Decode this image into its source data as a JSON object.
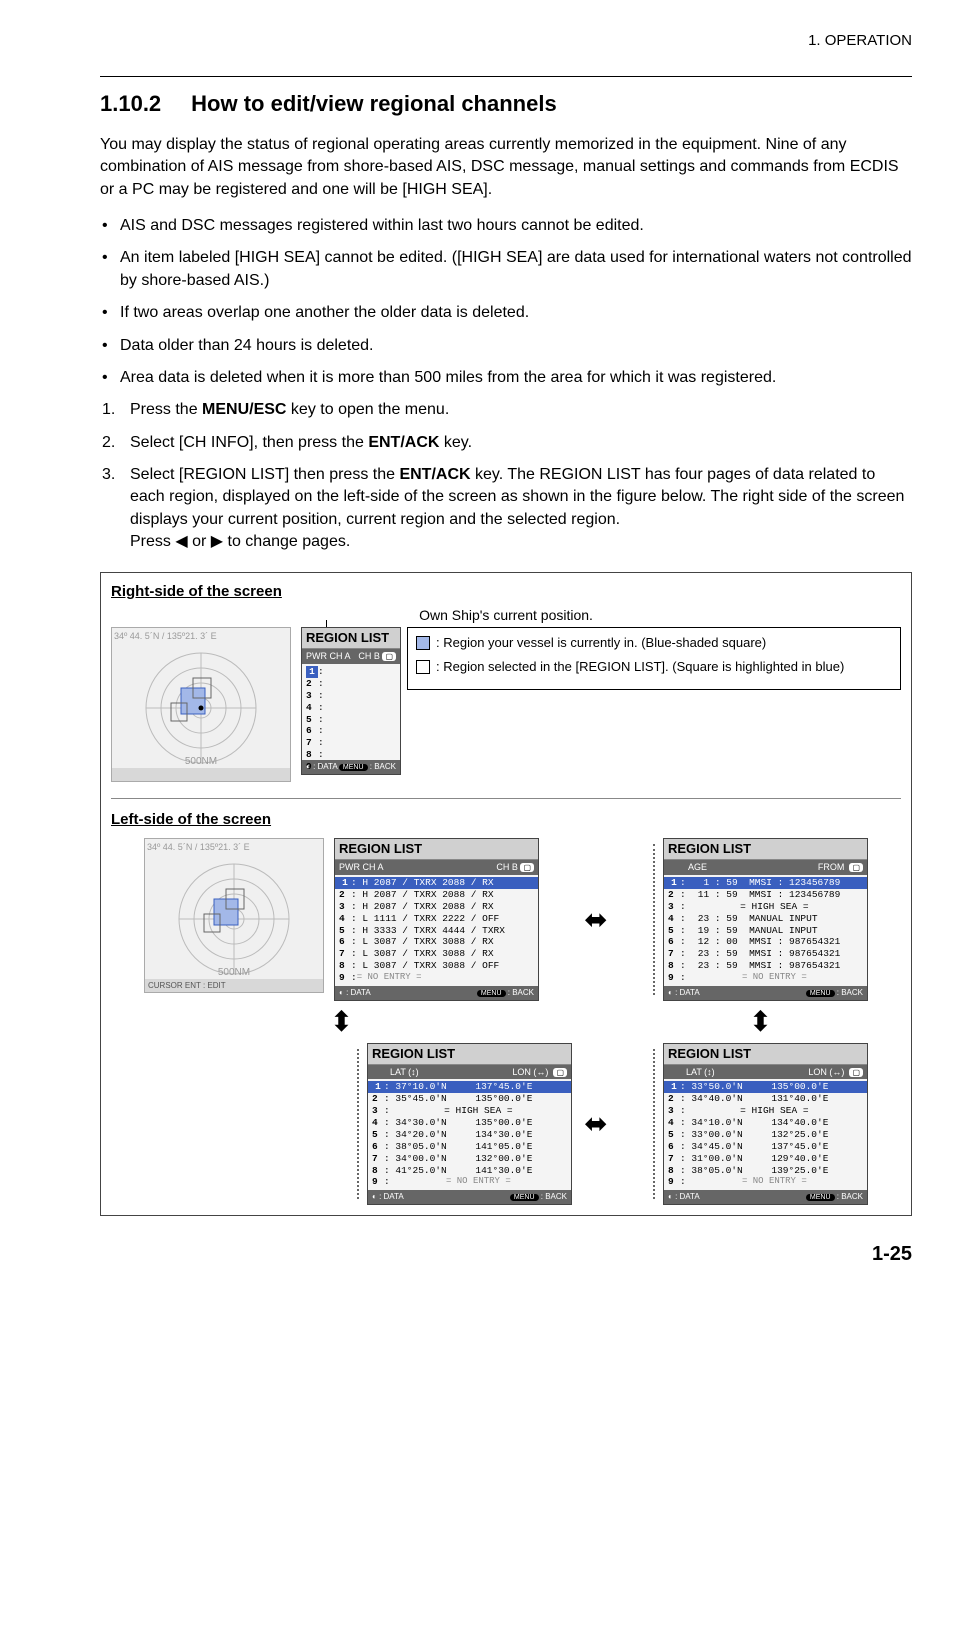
{
  "chapter_ref": "1.  OPERATION",
  "section": {
    "num": "1.10.2",
    "title": "How to edit/view regional channels"
  },
  "intro": "You may display the status of regional operating areas currently memorized in the equipment. Nine of any combination of AIS message from shore-based AIS, DSC message, manual settings and commands from ECDIS or a PC may be registered and one will be [HIGH SEA].",
  "bullets": [
    "AIS and DSC messages registered within last two hours cannot be edited.",
    "An item labeled [HIGH SEA] cannot be edited. ([HIGH SEA] are data used for international waters not controlled by shore-based AIS.)",
    "If two areas overlap one another the older data is deleted.",
    "Data older than 24 hours is deleted.",
    "Area data is deleted when it is more than 500 miles from the area for which it was registered."
  ],
  "steps": [
    {
      "pre": "Press the ",
      "bold": "MENU/ESC",
      "post": " key to open the menu."
    },
    {
      "pre": "Select [CH INFO], then press the ",
      "bold": "ENT/ACK",
      "post": " key."
    },
    {
      "pre": "Select [REGION LIST] then press the ",
      "bold": "ENT/ACK",
      "post": " key. The REGION LIST has four pages of data related to each region, displayed on the left-side of the screen as shown in the figure below. The right side of the screen displays your current position, current region and the selected region.",
      "tail_img": true
    }
  ],
  "step3_extra": "Press ◀ or ▶ to change pages.",
  "figure": {
    "right_label": "Right-side of the screen",
    "left_label": "Left-side of the screen",
    "own_ship": "Own Ship's current position.",
    "radar_coord": "34º 44. 5´N / 135º21. 3´ E",
    "radar_nm": "500NM",
    "radar_footer_left": "CURSOR       ENT : EDIT",
    "lcd_title": "REGION LIST",
    "lcd_sub_left": "PWR   CH A",
    "lcd_sub_right": "CH B",
    "footer_data": ": DATA",
    "footer_back": ": BACK",
    "footer_menu": "MENU",
    "legend": {
      "a": ": Region your vessel is currently in. (Blue-shaded square)",
      "b": ": Region selected in the [REGION LIST]. (Square is highlighted in blue)"
    },
    "no_entry": "= NO ENTRY =",
    "high_sea": "=  HIGH SEA  =",
    "panel_ch": {
      "rows": [
        {
          "n": "1",
          "txt": "H  2087 / TXRX   2088 / RX",
          "hl": true
        },
        {
          "n": "2",
          "txt": "H  2087 / TXRX   2088 / RX"
        },
        {
          "n": "3",
          "txt": "H  2087 / TXRX   2088 / RX"
        },
        {
          "n": "4",
          "txt": "L  1111 / TXRX   2222 / OFF"
        },
        {
          "n": "5",
          "txt": "H  3333 / TXRX   4444 / TXRX"
        },
        {
          "n": "6",
          "txt": "L  3087 / TXRX   3088 / RX"
        },
        {
          "n": "7",
          "txt": "L  3087 / TXRX   3088 / RX"
        },
        {
          "n": "8",
          "txt": "L  3087 / TXRX   3088 / OFF"
        }
      ]
    },
    "panel_age": {
      "header_l": "AGE",
      "header_r": "FROM",
      "rows": [
        {
          "n": "1",
          "age": "  1 : 59",
          "from": "MMSI : 123456789",
          "hl": true
        },
        {
          "n": "2",
          "age": "11 : 59",
          "from": "MMSI : 123456789"
        },
        {
          "n": "3",
          "age": "",
          "from": "",
          "highsea": true
        },
        {
          "n": "4",
          "age": "23 : 59",
          "from": "MANUAL INPUT"
        },
        {
          "n": "5",
          "age": "19 : 59",
          "from": "MANUAL INPUT"
        },
        {
          "n": "6",
          "age": "12 : 00",
          "from": "MMSI : 987654321"
        },
        {
          "n": "7",
          "age": "23 : 59",
          "from": "MMSI : 987654321"
        },
        {
          "n": "8",
          "age": "23 : 59",
          "from": "MMSI : 987654321"
        }
      ]
    },
    "panel_latlon1": {
      "header_l": "LAT (↕)",
      "header_r": "LON (↔)",
      "rows": [
        {
          "n": "1",
          "lat": "37°10.0'N",
          "lon": "137°45.0'E",
          "hl": true
        },
        {
          "n": "2",
          "lat": "35°45.0'N",
          "lon": "135°00.0'E"
        },
        {
          "n": "3",
          "lat": "",
          "lon": "",
          "highsea": true
        },
        {
          "n": "4",
          "lat": "34°30.0'N",
          "lon": "135°00.0'E"
        },
        {
          "n": "5",
          "lat": "34°20.0'N",
          "lon": "134°30.0'E"
        },
        {
          "n": "6",
          "lat": "38°05.0'N",
          "lon": "141°05.0'E"
        },
        {
          "n": "7",
          "lat": "34°00.0'N",
          "lon": "132°00.0'E"
        },
        {
          "n": "8",
          "lat": "41°25.0'N",
          "lon": "141°30.0'E"
        }
      ]
    },
    "panel_latlon2": {
      "header_l": "LAT (↕)",
      "header_r": "LON (↔)",
      "rows": [
        {
          "n": "1",
          "lat": "33°50.0'N",
          "lon": "135°00.0'E",
          "hl": true
        },
        {
          "n": "2",
          "lat": "34°40.0'N",
          "lon": "131°40.0'E"
        },
        {
          "n": "3",
          "lat": "",
          "lon": "",
          "highsea": true
        },
        {
          "n": "4",
          "lat": "34°10.0'N",
          "lon": "134°40.0'E"
        },
        {
          "n": "5",
          "lat": "33°00.0'N",
          "lon": "132°25.0'E"
        },
        {
          "n": "6",
          "lat": "34°45.0'N",
          "lon": "137°45.0'E"
        },
        {
          "n": "7",
          "lat": "31°00.0'N",
          "lon": "129°40.0'E"
        },
        {
          "n": "8",
          "lat": "38°05.0'N",
          "lon": "139°25.0'E"
        }
      ]
    },
    "colors": {
      "highlight_bg": "#3a5fbf",
      "blue_shade": "#a3b8e8",
      "lcd_bg": "#e8e8e8",
      "radar_bg": "#f0f0f0"
    }
  },
  "page_num": "1-25"
}
